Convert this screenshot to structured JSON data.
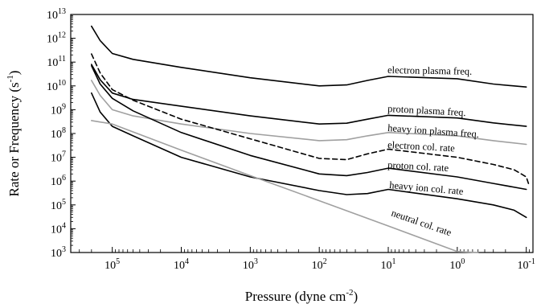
{
  "chart_data": {
    "type": "line",
    "title": "",
    "xlabel": {
      "base": "Pressure (dyne cm",
      "sup": "-2",
      "tail": ")"
    },
    "ylabel": {
      "base": "Rate or Frequency (s",
      "sup": "-1",
      "tail": ")"
    },
    "x_scale": "log",
    "x_reversed": true,
    "y_scale": "log",
    "xlim": [
      400000,
      0.08
    ],
    "ylim": [
      1000,
      10000000000000
    ],
    "grid": false,
    "legend": "none",
    "x_ticks": [
      {
        "base": "10",
        "exp": "5"
      },
      {
        "base": "10",
        "exp": "4"
      },
      {
        "base": "10",
        "exp": "3"
      },
      {
        "base": "10",
        "exp": "2"
      },
      {
        "base": "10",
        "exp": "1"
      },
      {
        "base": "10",
        "exp": "0"
      },
      {
        "base": "10",
        "exp": "-1"
      }
    ],
    "y_ticks": [
      {
        "base": "10",
        "exp": "3"
      },
      {
        "base": "10",
        "exp": "4"
      },
      {
        "base": "10",
        "exp": "5"
      },
      {
        "base": "10",
        "exp": "6"
      },
      {
        "base": "10",
        "exp": "7"
      },
      {
        "base": "10",
        "exp": "8"
      },
      {
        "base": "10",
        "exp": "9"
      },
      {
        "base": "10",
        "exp": "10"
      },
      {
        "base": "10",
        "exp": "11"
      },
      {
        "base": "10",
        "exp": "12"
      },
      {
        "base": "10",
        "exp": "13"
      }
    ],
    "series": [
      {
        "name": "electron plasma freq.",
        "color": "#000000",
        "dash": "solid",
        "x": [
          200000,
          150000,
          100000,
          50000,
          10000,
          1000,
          100,
          40,
          20,
          10,
          1,
          0.3,
          0.1
        ],
        "y": [
          3200000000000.0,
          800000000000.0,
          230000000000.0,
          130000000000.0,
          60000000000.0,
          22000000000.0,
          10000000000.0,
          11000000000.0,
          17000000000.0,
          25000000000.0,
          20000000000.0,
          12000000000.0,
          9000000000.0
        ]
      },
      {
        "name": "proton plasma freq.",
        "color": "#000000",
        "dash": "solid",
        "x": [
          200000,
          150000,
          100000,
          50000,
          10000,
          1000,
          100,
          40,
          20,
          10,
          1,
          0.3,
          0.1
        ],
        "y": [
          80000000000.0,
          18000000000.0,
          5000000000.0,
          2700000000.0,
          1400000000.0,
          550000000.0,
          250000000.0,
          270000000.0,
          400000000.0,
          580000000.0,
          450000000.0,
          280000000.0,
          200000000.0
        ]
      },
      {
        "name": "heavy ion plasma freq.",
        "color": "#a0a0a0",
        "dash": "solid",
        "x": [
          200000,
          150000,
          100000,
          50000,
          10000,
          1000,
          100,
          40,
          20,
          10,
          1,
          0.3,
          0.1
        ],
        "y": [
          17000000000.0,
          4000000000.0,
          1000000000.0,
          550000000.0,
          250000000.0,
          100000000.0,
          50000000.0,
          55000000.0,
          80000000.0,
          110000000.0,
          80000000.0,
          50000000.0,
          35000000.0
        ]
      },
      {
        "name": "electron col. rate",
        "color": "#000000",
        "dash": "dashed",
        "x": [
          200000,
          150000,
          100000,
          50000,
          10000,
          1000,
          100,
          40,
          20,
          10,
          1,
          0.3,
          0.15,
          0.1,
          0.09
        ],
        "y": [
          220000000000.0,
          35000000000.0,
          7000000000.0,
          2500000000.0,
          400000000.0,
          60000000.0,
          9000000.0,
          8000000.0,
          14000000.0,
          22000000.0,
          10000000.0,
          5000000.0,
          3000000.0,
          1500000.0,
          600000.0
        ]
      },
      {
        "name": "proton col. rate",
        "color": "#000000",
        "dash": "solid",
        "x": [
          200000,
          150000,
          100000,
          50000,
          10000,
          1000,
          100,
          40,
          20,
          10,
          1,
          0.3,
          0.1
        ],
        "y": [
          70000000000.0,
          12000000000.0,
          3000000000.0,
          900000000.0,
          110000000.0,
          12000000.0,
          2000000.0,
          1700000.0,
          2300000.0,
          3500000.0,
          1500000.0,
          800000.0,
          450000.0
        ]
      },
      {
        "name": "heavy ion col. rate",
        "color": "#000000",
        "dash": "solid",
        "x": [
          200000,
          150000,
          100000,
          50000,
          10000,
          1000,
          100,
          40,
          20,
          10,
          1,
          0.3,
          0.15,
          0.1
        ],
        "y": [
          5000000000.0,
          800000000.0,
          200000000.0,
          80000000.0,
          10000000.0,
          1500000.0,
          400000.0,
          270000.0,
          300000.0,
          450000.0,
          180000.0,
          100000.0,
          60000.0,
          30000.0
        ]
      },
      {
        "name": "neutral col. rate",
        "color": "#a0a0a0",
        "dash": "solid",
        "x": [
          200000,
          100000,
          10000,
          1000,
          100,
          10,
          1,
          0.5
        ],
        "y": [
          350000000.0,
          250000000.0,
          20000000.0,
          1700000.0,
          150000.0,
          13000.0,
          1100.0,
          1000.0
        ]
      }
    ]
  }
}
